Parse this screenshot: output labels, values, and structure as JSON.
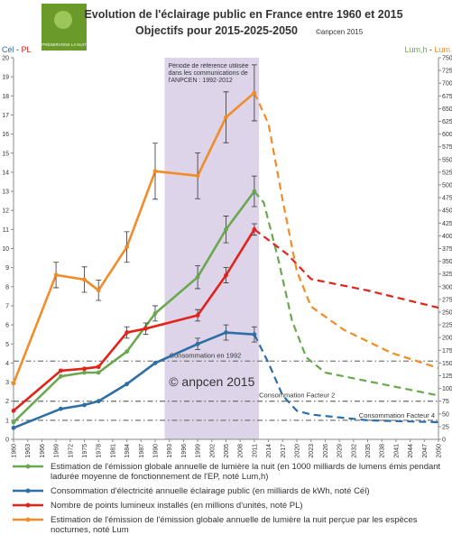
{
  "chart_data": {
    "type": "line",
    "title": "Evolution de l'éclairage public en France entre 1960 et 2015",
    "subtitle": "Objectifs pour 2015-2025-2050",
    "copyright": "©anpcen 2015",
    "logo_text": "PRÉSERVONS LA NUIT",
    "watermark": "© anpcen 2015",
    "y_label_parts": [
      "Cél",
      "-",
      "PL"
    ],
    "y2_label_parts": [
      "Lum,h",
      "-",
      "Lum"
    ],
    "xlim": [
      1960,
      2050
    ],
    "xticks": [
      1960,
      1963,
      1966,
      1969,
      1972,
      1975,
      1978,
      1981,
      1984,
      1987,
      1990,
      1993,
      1996,
      1999,
      2002,
      2005,
      2008,
      2011,
      2014,
      2017,
      2020,
      2023,
      2026,
      2029,
      2032,
      2035,
      2038,
      2041,
      2044,
      2047,
      2050
    ],
    "ylim": [
      0,
      20
    ],
    "yticks": [
      0,
      1,
      2,
      3,
      4,
      5,
      6,
      7,
      8,
      9,
      10,
      11,
      12,
      13,
      14,
      15,
      16,
      17,
      18,
      19,
      20
    ],
    "y2lim": [
      0,
      750
    ],
    "y2ticks": [
      0,
      25,
      50,
      75,
      100,
      125,
      150,
      175,
      200,
      225,
      250,
      275,
      300,
      325,
      350,
      375,
      400,
      425,
      450,
      475,
      500,
      525,
      550,
      575,
      600,
      625,
      650,
      675,
      700,
      725,
      750
    ],
    "reference_period": {
      "range": [
        1992,
        2012
      ],
      "label": "Période de référence utilisée dans les communications de l'ANPCEN : 1992-2012",
      "color": "#ddd4ea"
    },
    "reference_lines": [
      {
        "value": 4.1,
        "label": "Consommation en 1992"
      },
      {
        "value": 2.0,
        "label": "Consommation Facteur 2"
      },
      {
        "value": 1.0,
        "label": "Consommation Facteur 4"
      }
    ],
    "series": [
      {
        "name": "Estimation de l'émission globale annuelle de lumière la nuit (en 1000 milliards de lumens émis pendant ladurée moyenne de fonctionnement de l'EP, noté Lum,h)",
        "color": "#6aa84f",
        "axis": "y",
        "x": [
          1960,
          1970,
          1975,
          1978,
          1984,
          1990,
          1999,
          2005,
          2011
        ],
        "values": [
          0.9,
          3.3,
          3.5,
          3.5,
          4.6,
          6.6,
          8.5,
          11.0,
          13.0
        ],
        "errors": [
          null,
          null,
          null,
          null,
          null,
          0.4,
          0.6,
          0.7,
          0.8
        ],
        "projection_x": [
          2011,
          2013,
          2016,
          2019,
          2022,
          2026,
          2050
        ],
        "projection": [
          13.0,
          12.4,
          9.5,
          6.2,
          4.3,
          3.5,
          2.3
        ]
      },
      {
        "name": "Consommation d'électricité annuelle éclairage public (en milliards de kWh, noté Cél)",
        "color": "#2e6ea6",
        "axis": "y",
        "x": [
          1960,
          1970,
          1975,
          1978,
          1984,
          1990,
          1999,
          2005,
          2011
        ],
        "values": [
          0.6,
          1.6,
          1.8,
          2.0,
          2.9,
          4.0,
          5.0,
          5.6,
          5.5
        ],
        "errors": [
          null,
          null,
          null,
          null,
          null,
          null,
          0.3,
          0.4,
          0.4
        ],
        "projection_x": [
          2011,
          2014,
          2017,
          2020,
          2023,
          2035,
          2050
        ],
        "projection": [
          5.5,
          4.0,
          2.3,
          1.5,
          1.3,
          1.0,
          0.9
        ]
      },
      {
        "name": "Nombre de points lumineux installés (en millions d'unités, noté PL)",
        "color": "#e2231a",
        "axis": "y",
        "x": [
          1960,
          1970,
          1975,
          1978,
          1984,
          1988,
          1999,
          2005,
          2011
        ],
        "values": [
          1.5,
          3.6,
          3.7,
          3.8,
          5.6,
          5.8,
          6.5,
          8.6,
          11.0
        ],
        "errors": [
          null,
          null,
          null,
          null,
          0.3,
          0.3,
          0.3,
          0.4,
          0.3
        ],
        "projection_x": [
          2011,
          2018,
          2023,
          2035,
          2050
        ],
        "projection": [
          11.0,
          9.7,
          8.4,
          7.8,
          6.9
        ]
      },
      {
        "name": "Estimation de l'émission de l'émission globale annuelle de lumière la nuit perçue par les espèces nocturnes, noté Lum",
        "color": "#f28c28",
        "axis": "y2",
        "x": [
          1960,
          1969,
          1975,
          1978,
          1984,
          1990,
          1999,
          2005,
          2011
        ],
        "values": [
          110,
          323,
          314,
          293,
          378,
          527,
          518,
          633,
          681
        ],
        "errors": [
          null,
          25,
          25,
          20,
          30,
          55,
          45,
          50,
          55
        ],
        "projection_x": [
          2011,
          2014,
          2017,
          2020,
          2023,
          2030,
          2040,
          2050
        ],
        "projection": [
          681,
          620,
          470,
          331,
          261,
          215,
          170,
          140
        ]
      }
    ]
  }
}
